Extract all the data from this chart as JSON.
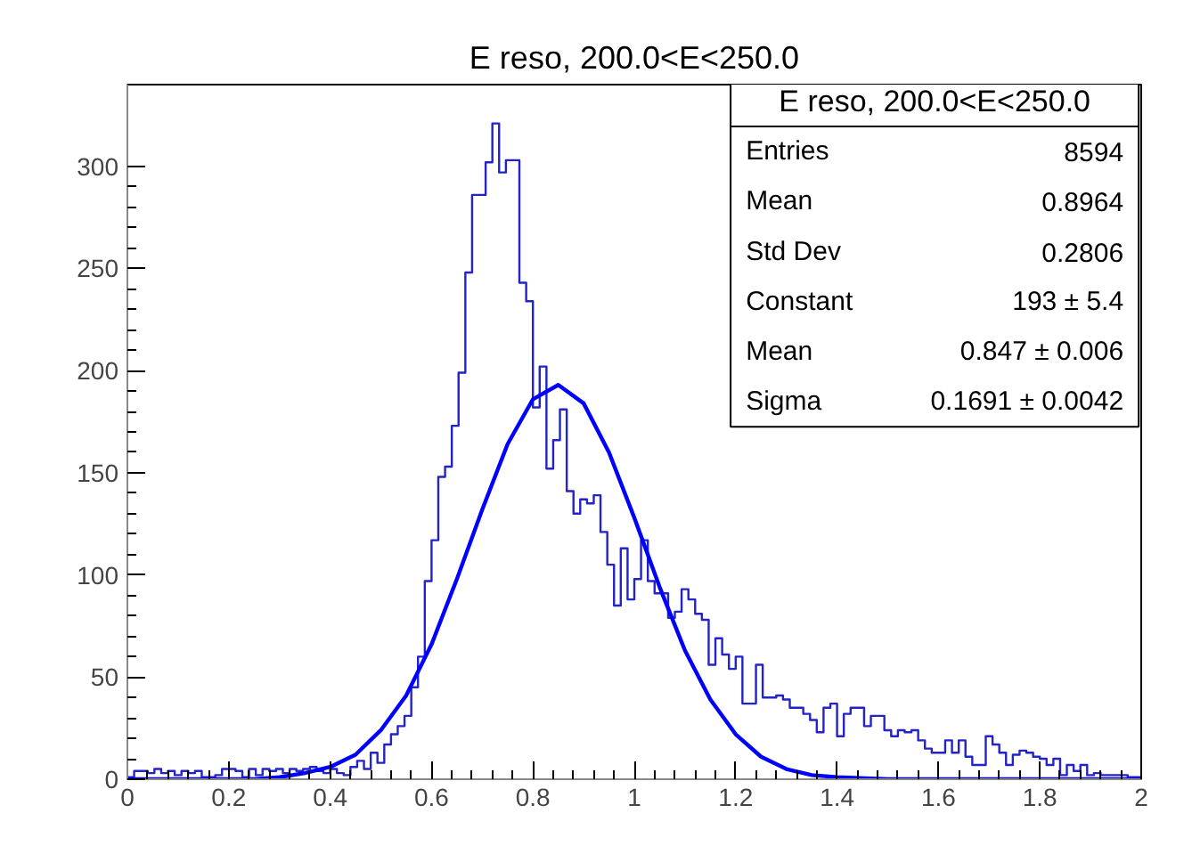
{
  "chart_data": {
    "type": "histogram",
    "title": "E reso, 200.0<E<250.0",
    "bins": [
      0,
      0.0133,
      0.0267,
      0.04,
      0.0533,
      0.0667,
      0.08,
      0.0933,
      0.1067,
      0.12,
      0.1333,
      0.1467,
      0.16,
      0.1733,
      0.1867,
      0.2,
      0.2133,
      0.2267,
      0.24,
      0.2533,
      0.2667,
      0.28,
      0.2933,
      0.3067,
      0.32,
      0.3333,
      0.3467,
      0.36,
      0.3733,
      0.3867,
      0.4,
      0.4133,
      0.4267,
      0.44,
      0.4533,
      0.4667,
      0.48,
      0.4933,
      0.5067,
      0.52,
      0.5333,
      0.5467,
      0.56,
      0.5733,
      0.5867,
      0.6,
      0.6133,
      0.6267,
      0.64,
      0.6533,
      0.6667,
      0.68,
      0.6933,
      0.7067,
      0.72,
      0.7333,
      0.7467,
      0.76,
      0.7733,
      0.7867,
      0.8,
      0.8133,
      0.8267,
      0.84,
      0.8533,
      0.8667,
      0.88,
      0.8933,
      0.9067,
      0.92,
      0.9333,
      0.9467,
      0.96,
      0.9733,
      0.9867,
      1,
      1.0133,
      1.0267,
      1.04,
      1.0533,
      1.0667,
      1.08,
      1.0933,
      1.1067,
      1.12,
      1.1333,
      1.1467,
      1.16,
      1.1733,
      1.1867,
      1.2,
      1.2133,
      1.2267,
      1.24,
      1.2533,
      1.2667,
      1.28,
      1.2933,
      1.3067,
      1.32,
      1.3333,
      1.3467,
      1.36,
      1.3733,
      1.3867,
      1.4,
      1.4133,
      1.4267,
      1.44,
      1.4533,
      1.4667,
      1.48,
      1.4933,
      1.5067,
      1.52,
      1.5333,
      1.5467,
      1.56,
      1.5733,
      1.5867,
      1.6,
      1.6133,
      1.6267,
      1.64,
      1.6533,
      1.6667,
      1.68,
      1.6933,
      1.7067,
      1.72,
      1.7333,
      1.7467,
      1.76,
      1.7733,
      1.7867,
      1.8,
      1.8133,
      1.8267,
      1.84,
      1.8533,
      1.8667,
      1.88,
      1.8933,
      1.9067,
      1.92,
      1.9333,
      1.9467,
      1.96,
      1.9733,
      1.9867,
      2
    ],
    "series": [
      {
        "color": "#2323c8",
        "values": [
          1,
          4,
          4,
          3,
          5,
          3,
          4,
          2,
          4,
          3,
          4,
          1,
          1,
          2,
          5,
          5,
          4,
          1,
          5,
          2,
          5,
          4,
          5,
          3,
          5,
          4,
          5,
          6,
          4,
          3,
          5,
          3,
          2,
          6,
          9,
          5,
          13,
          8,
          17,
          22,
          26,
          31,
          45,
          60,
          97,
          117,
          148,
          153,
          173,
          199,
          248,
          286,
          286,
          302,
          321,
          297,
          303,
          303,
          243,
          234,
          182,
          202,
          152,
          166,
          181,
          141,
          130,
          137,
          135,
          139,
          121,
          105,
          85,
          113,
          88,
          98,
          117,
          97,
          91,
          91,
          79,
          82,
          93,
          88,
          81,
          78,
          56,
          69,
          61,
          54,
          60,
          37,
          37,
          56,
          40,
          40,
          41,
          39,
          35,
          35,
          32,
          29,
          23,
          35,
          37,
          21,
          32,
          35,
          35,
          26,
          31,
          31,
          24,
          21,
          24,
          23,
          24,
          19,
          15,
          13,
          13,
          19,
          13,
          19,
          11,
          7,
          7,
          21,
          17,
          13,
          7,
          12,
          14,
          13,
          11,
          10,
          7,
          10,
          2,
          7,
          4,
          7,
          2,
          3,
          2,
          2,
          2,
          2,
          1,
          1
        ]
      },
      {
        "type": "line",
        "color": "#0000ff",
        "x": [
          0,
          0.1,
          0.2,
          0.25,
          0.3,
          0.35,
          0.4,
          0.45,
          0.5,
          0.55,
          0.6,
          0.65,
          0.7,
          0.75,
          0.8,
          0.85,
          0.9,
          0.95,
          1,
          1.05,
          1.1,
          1.15,
          1.2,
          1.25,
          1.3,
          1.35,
          1.4,
          1.5,
          1.6,
          1.8,
          2
        ],
        "values": [
          0,
          0,
          0,
          0,
          1,
          3,
          6,
          12,
          24,
          41,
          66,
          98,
          132,
          164,
          186,
          193,
          184,
          160,
          128,
          94,
          63,
          39,
          22,
          11,
          5,
          2,
          1,
          0,
          0,
          0,
          0
        ]
      }
    ],
    "xlim": [
      0,
      2
    ],
    "xticks": [
      0,
      0.2,
      0.4,
      0.6,
      0.8,
      1,
      1.2,
      1.4,
      1.6,
      1.8,
      2
    ],
    "ylim": [
      0,
      340
    ],
    "yticks": [
      0,
      50,
      100,
      150,
      200,
      250,
      300
    ],
    "annotations": [
      "E reso, 200.0<E<250.0",
      "Entries",
      "8594",
      "Mean",
      "0.8964",
      "Std Dev",
      "0.2806",
      "Constant",
      "193 ± 5.4",
      "Mean",
      "0.847 ± 0.006",
      "Sigma",
      "0.1691 ± 0.0042"
    ]
  }
}
